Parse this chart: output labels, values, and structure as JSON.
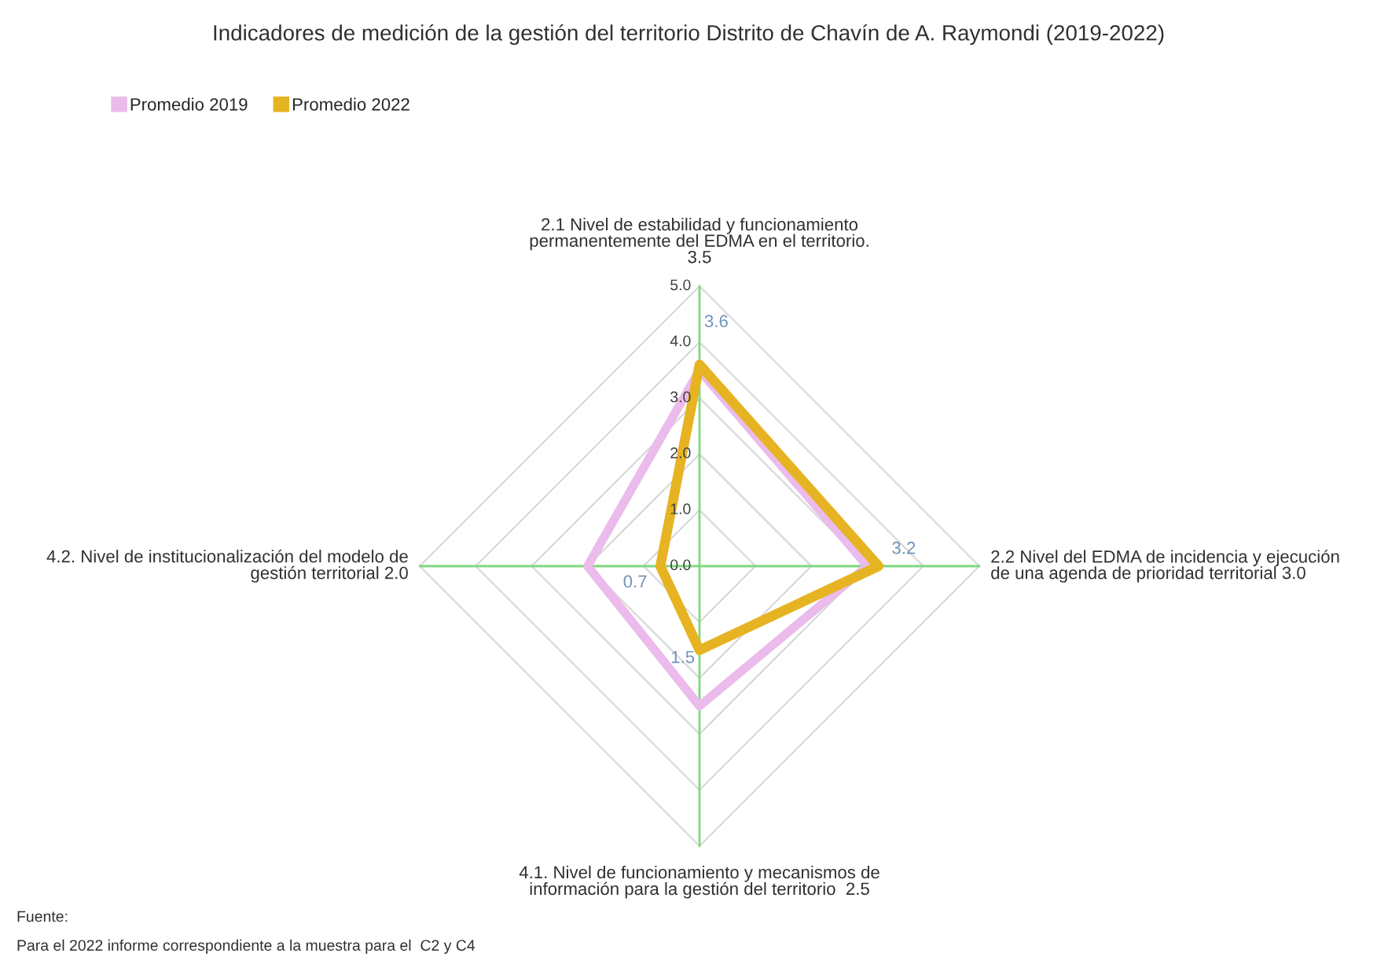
{
  "chart_data": {
    "type": "radar",
    "title": "Indicadores de medición de la gestión del territorio Distrito de Chavín de A. Raymondi (2019-2022)",
    "categories": [
      "2.1 Nivel de estabilidad y funcionamiento\npermanentemente del EDMA en el territorio.\n3.5",
      "2.2 Nivel del EDMA de incidencia y ejecución\nde una agenda de prioridad territorial 3.0",
      "4.1. Nivel de funcionamiento y mecanismos de\ninformación para la gestión del territorio  2.5",
      "4.2. Nivel de institucionalización del modelo de\ngestión territorial 2.0"
    ],
    "series": [
      {
        "name": "Promedio 2019",
        "color": "#ebbbeb",
        "values": [
          3.5,
          3.0,
          2.5,
          2.0
        ]
      },
      {
        "name": "Promedio 2022",
        "color": "#e6b422",
        "values": [
          3.6,
          3.2,
          1.5,
          0.7
        ],
        "value_labels": [
          "3.6",
          "3.2",
          "1.5",
          "0.7"
        ]
      }
    ],
    "ylim": [
      0,
      5
    ],
    "yticks": [
      {
        "value": 0,
        "label": "0.0"
      },
      {
        "value": 1,
        "label": "1.0"
      },
      {
        "value": 2,
        "label": "2.0"
      },
      {
        "value": 3,
        "label": "3.0"
      },
      {
        "value": 4,
        "label": "4.0"
      },
      {
        "value": 5,
        "label": "5.0"
      }
    ],
    "grid": true,
    "legend": "top left",
    "annotations": [
      "Fuente:",
      "Para el 2022 informe correspondiente a la muestra para el  C2 y C4"
    ]
  }
}
